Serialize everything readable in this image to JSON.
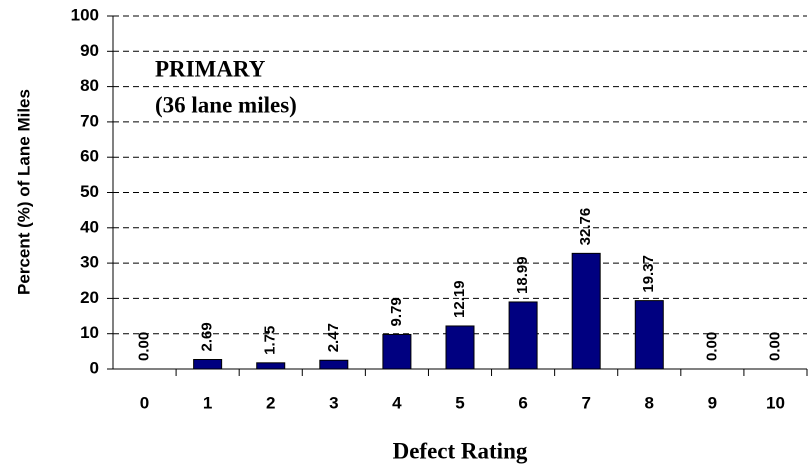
{
  "chart_data": {
    "type": "bar",
    "x_label": "Defect Rating",
    "y_label": "Percent (%) of Lane Miles",
    "annotations": [
      "PRIMARY",
      "(36 lane miles)"
    ],
    "categories": [
      "0",
      "1",
      "2",
      "3",
      "4",
      "5",
      "6",
      "7",
      "8",
      "9",
      "10"
    ],
    "values": [
      0,
      2.69,
      1.75,
      2.47,
      9.79,
      12.19,
      18.99,
      32.76,
      19.37,
      0,
      0
    ],
    "value_labels": [
      "0.00",
      "2.69",
      "1.75",
      "2.47",
      "9.79",
      "12.19",
      "18.99",
      "32.76",
      "19.37",
      "0.00",
      "0.00"
    ],
    "color": "#000080",
    "annotation_color": "#1a1a80",
    "ylim": [
      0,
      100
    ],
    "yticks": [
      0,
      10,
      20,
      30,
      40,
      50,
      60,
      70,
      80,
      90,
      100
    ],
    "grid": true
  }
}
